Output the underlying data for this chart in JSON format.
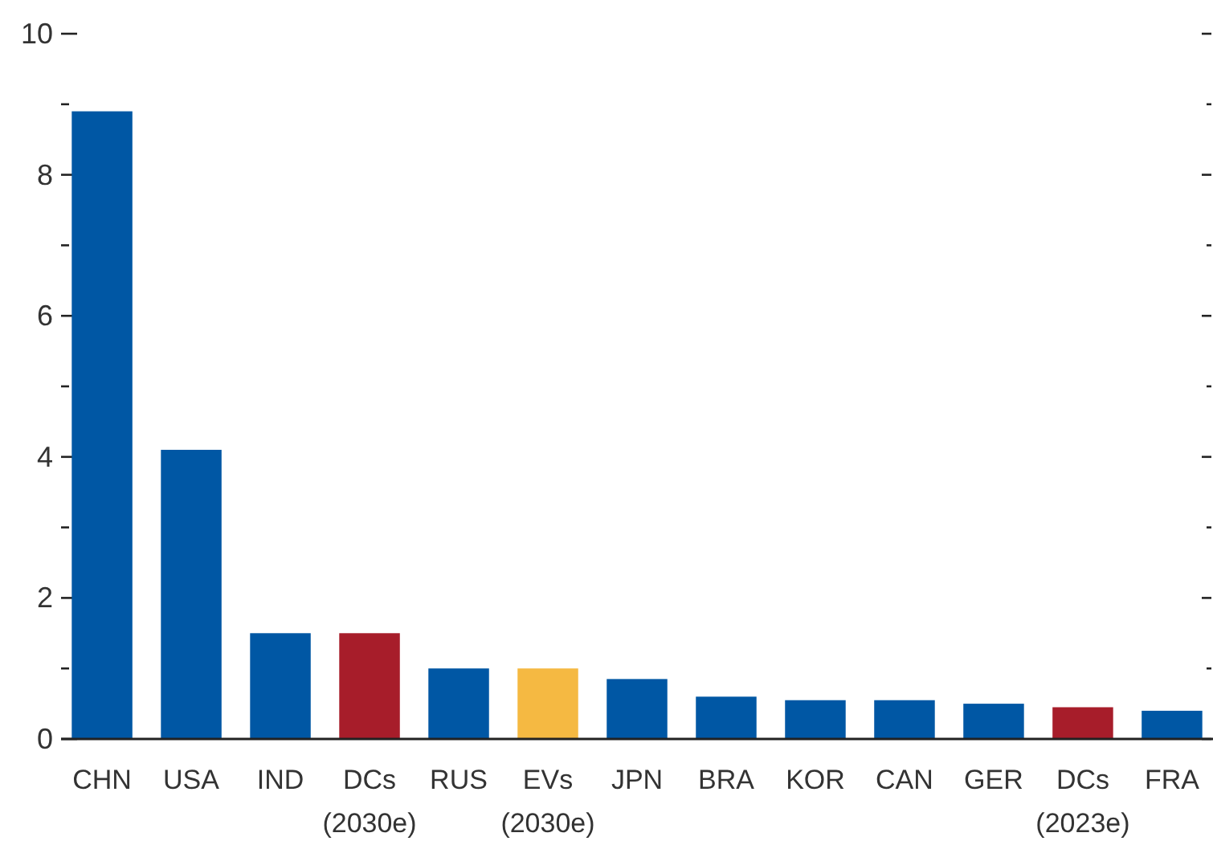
{
  "chart_data": {
    "type": "bar",
    "categories": [
      "CHN",
      "USA",
      "IND",
      "DCs (2030e)",
      "RUS",
      "EVs (2030e)",
      "JPN",
      "BRA",
      "KOR",
      "CAN",
      "GER",
      "DCs (2023e)",
      "FRA"
    ],
    "values": [
      8.9,
      4.1,
      1.5,
      1.5,
      1.0,
      1.0,
      0.85,
      0.6,
      0.55,
      0.55,
      0.5,
      0.45,
      0.4
    ],
    "colors": [
      "#0057a4",
      "#0057a4",
      "#0057a4",
      "#a71d2a",
      "#0057a4",
      "#f5b942",
      "#0057a4",
      "#0057a4",
      "#0057a4",
      "#0057a4",
      "#0057a4",
      "#a71d2a",
      "#0057a4"
    ],
    "ylim": [
      0,
      10
    ],
    "yticks": [
      0,
      {
        "value": 1,
        "label": null
      },
      2,
      {
        "value": 3,
        "label": null
      },
      4,
      {
        "value": 5,
        "label": null
      },
      6,
      {
        "value": 7,
        "label": null
      },
      8,
      {
        "value": 9,
        "label": null
      },
      10
    ]
  }
}
